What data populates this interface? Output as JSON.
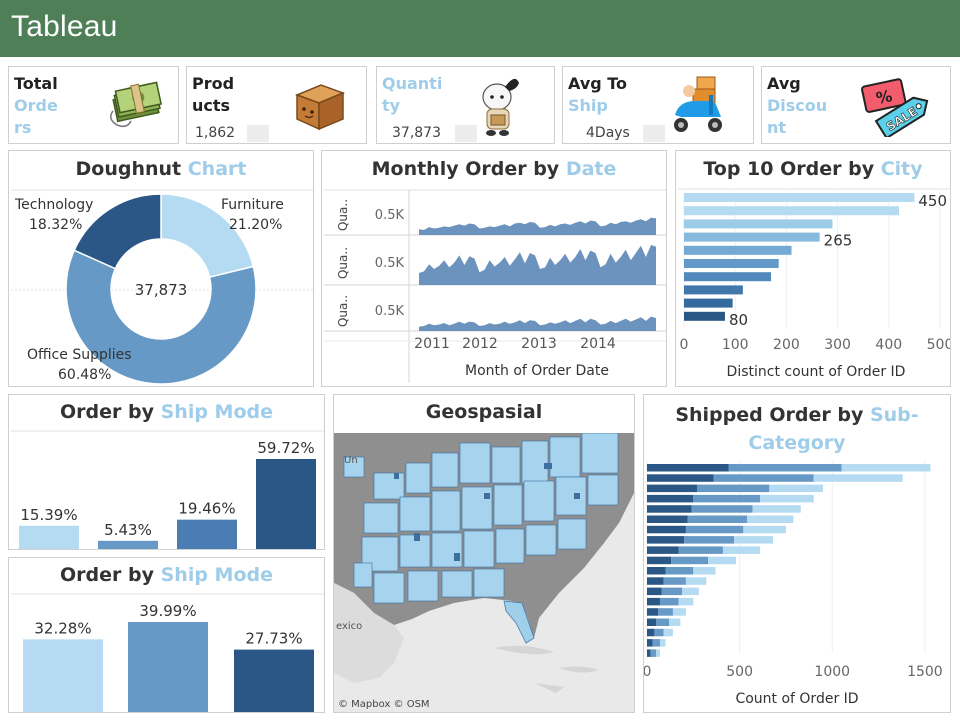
{
  "header": {
    "title": "Tableau"
  },
  "kpis": [
    {
      "lines": [
        {
          "t": "Total",
          "c": "dark"
        },
        {
          "t": "Orde",
          "c": "light"
        },
        {
          "t": "rs",
          "c": "light"
        }
      ],
      "value": "",
      "icon": "money-icon"
    },
    {
      "lines": [
        {
          "t": "Prod",
          "c": "dark"
        },
        {
          "t": "ucts",
          "c": "dark"
        }
      ],
      "value": "1,862",
      "icon": "box-icon"
    },
    {
      "lines": [
        {
          "t": "Quanti",
          "c": "light"
        },
        {
          "t": "ty",
          "c": "light"
        }
      ],
      "value": "37,873",
      "icon": "character-icon"
    },
    {
      "lines": [
        {
          "t": "Avg To",
          "c": "dark"
        },
        {
          "t": "Ship",
          "c": "light"
        }
      ],
      "value": "4Days",
      "icon": "scooter-icon"
    },
    {
      "lines": [
        {
          "t": "Avg",
          "c": "dark"
        },
        {
          "t": "Discou",
          "c": "light"
        },
        {
          "t": "nt",
          "c": "light"
        }
      ],
      "value": "",
      "icon": "sale-tag-icon",
      "tag_text": "SALE"
    }
  ],
  "doughnut": {
    "title_dark": "Doughnut ",
    "title_light": "Chart",
    "center": "37,873",
    "chart_data": {
      "type": "pie",
      "slices": [
        {
          "label": "Furniture",
          "value": 21.2,
          "pct": "21.20%",
          "color": "#b5dbf2"
        },
        {
          "label": "Office Supplies",
          "value": 60.48,
          "pct": "60.48%",
          "color": "#6699c6"
        },
        {
          "label": "Technology",
          "value": 18.32,
          "pct": "18.32%",
          "color": "#2a5785"
        }
      ]
    }
  },
  "monthly": {
    "title_dark": "Monthly Order by ",
    "title_light": "Date",
    "row_label": "Qua..",
    "row_tick": "0.5K",
    "xlabel": "Month of Order Date",
    "chart_data": {
      "type": "area",
      "x_ticks": [
        "2011",
        "2012",
        "2013",
        "2014"
      ],
      "series": [
        {
          "values": [
            0.16,
            0.14,
            0.22,
            0.18,
            0.2,
            0.24,
            0.22,
            0.26,
            0.3,
            0.26,
            0.32,
            0.3,
            0.18,
            0.2,
            0.24,
            0.22,
            0.26,
            0.3,
            0.24,
            0.32,
            0.34,
            0.3,
            0.36,
            0.34,
            0.2,
            0.22,
            0.28,
            0.24,
            0.3,
            0.32,
            0.28,
            0.34,
            0.38,
            0.32,
            0.4,
            0.38,
            0.24,
            0.26,
            0.34,
            0.3,
            0.36,
            0.38,
            0.34,
            0.4,
            0.44,
            0.38,
            0.48,
            0.46
          ]
        },
        {
          "values": [
            0.3,
            0.34,
            0.52,
            0.4,
            0.48,
            0.62,
            0.44,
            0.56,
            0.74,
            0.5,
            0.72,
            0.66,
            0.32,
            0.38,
            0.62,
            0.46,
            0.56,
            0.7,
            0.48,
            0.64,
            0.82,
            0.54,
            0.8,
            0.74,
            0.4,
            0.44,
            0.68,
            0.5,
            0.62,
            0.78,
            0.56,
            0.7,
            0.9,
            0.62,
            0.86,
            0.8,
            0.44,
            0.52,
            0.78,
            0.56,
            0.7,
            0.88,
            0.62,
            0.8,
            0.98,
            0.7,
            1.0,
            0.96
          ]
        },
        {
          "values": [
            0.12,
            0.14,
            0.2,
            0.16,
            0.18,
            0.22,
            0.16,
            0.2,
            0.26,
            0.2,
            0.26,
            0.24,
            0.14,
            0.16,
            0.22,
            0.18,
            0.2,
            0.26,
            0.2,
            0.24,
            0.3,
            0.22,
            0.3,
            0.28,
            0.16,
            0.18,
            0.24,
            0.2,
            0.24,
            0.3,
            0.22,
            0.28,
            0.34,
            0.24,
            0.34,
            0.3,
            0.18,
            0.2,
            0.28,
            0.22,
            0.28,
            0.34,
            0.26,
            0.32,
            0.38,
            0.28,
            0.4,
            0.36
          ]
        }
      ]
    }
  },
  "city": {
    "title_dark": "Top 10 Order by ",
    "title_light": "City",
    "xlabel": "Distinct count of Order ID",
    "x_ticks": [
      "0",
      "100",
      "200",
      "300",
      "400",
      "500"
    ],
    "chart_data": {
      "type": "bar",
      "xlim": [
        0,
        500
      ],
      "values": [
        450,
        420,
        290,
        265,
        210,
        185,
        170,
        115,
        95,
        80
      ],
      "labels": [
        "450",
        "",
        "",
        "265",
        "",
        "",
        "",
        "",
        "",
        "80"
      ],
      "colors": [
        "#b5dbf2",
        "#b5dbf2",
        "#9ccbe8",
        "#86b9de",
        "#74a9d4",
        "#6399c8",
        "#5288bb",
        "#4177ab",
        "#356a9e",
        "#2a5785"
      ]
    }
  },
  "ship1": {
    "title_dark": "Order by ",
    "title_light": "Ship Mode",
    "chart_data": {
      "type": "bar",
      "values": [
        15.39,
        5.43,
        19.46,
        59.72
      ],
      "labels": [
        "15.39%",
        "5.43%",
        "19.46%",
        "59.72%"
      ],
      "colors": [
        "#b5dbf2",
        "#6699c6",
        "#4a7db3",
        "#2a5785"
      ]
    }
  },
  "ship2": {
    "title_dark": "Order by ",
    "title_light": "Ship Mode",
    "chart_data": {
      "type": "bar",
      "values": [
        32.28,
        39.99,
        27.73
      ],
      "labels": [
        "32.28%",
        "39.99%",
        "27.73%"
      ],
      "colors": [
        "#b5dbf2",
        "#6699c6",
        "#2a5785"
      ]
    }
  },
  "geo": {
    "title": "Geospasial",
    "credit": "© Mapbox © OSM",
    "place": "exico",
    "place2": "Un"
  },
  "subcat": {
    "title_dark": "Shipped Order by ",
    "title_light": "Sub-",
    "title_light2": "Category",
    "xlabel": "Count of Order ID",
    "x_ticks": [
      "0",
      "500",
      "1000",
      "1500"
    ],
    "chart_data": {
      "type": "bar",
      "xlim": [
        0,
        1560
      ],
      "series_colors": [
        "#2a5785",
        "#6699c6",
        "#b5dbf2"
      ],
      "rows": [
        [
          440,
          610,
          480
        ],
        [
          360,
          540,
          480
        ],
        [
          270,
          390,
          290
        ],
        [
          250,
          360,
          290
        ],
        [
          240,
          330,
          260
        ],
        [
          220,
          320,
          250
        ],
        [
          210,
          310,
          230
        ],
        [
          200,
          270,
          210
        ],
        [
          170,
          240,
          200
        ],
        [
          130,
          200,
          150
        ],
        [
          100,
          150,
          120
        ],
        [
          90,
          120,
          110
        ],
        [
          80,
          110,
          90
        ],
        [
          70,
          100,
          80
        ],
        [
          60,
          80,
          70
        ],
        [
          50,
          70,
          60
        ],
        [
          40,
          50,
          50
        ],
        [
          30,
          40,
          30
        ],
        [
          20,
          30,
          20
        ]
      ]
    }
  }
}
